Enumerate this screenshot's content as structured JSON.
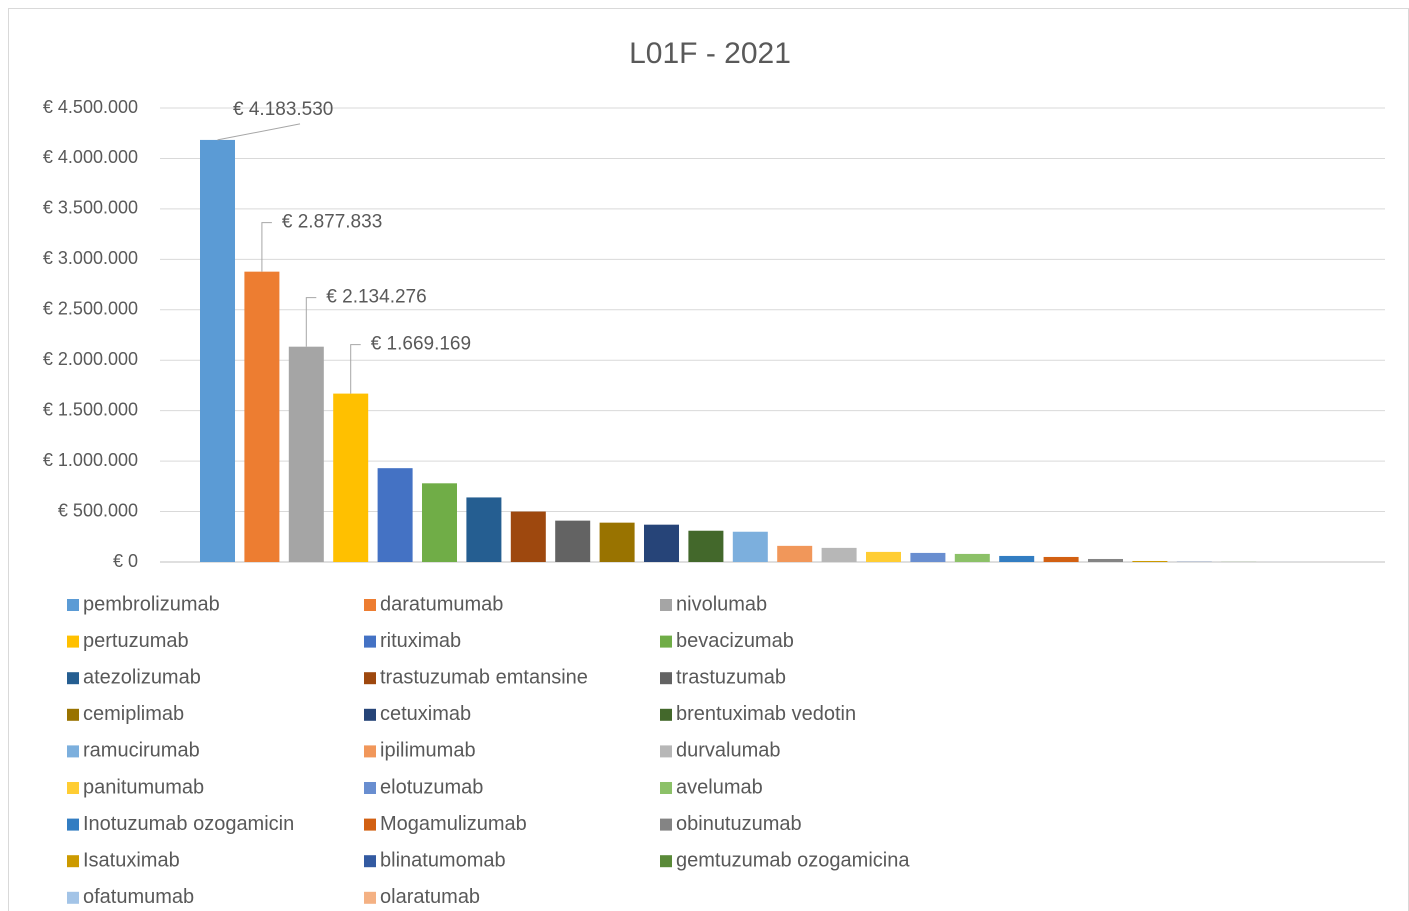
{
  "chart_data": {
    "type": "bar",
    "title": "L01F - 2021",
    "categories": [
      null
    ],
    "ylim": [
      0,
      4500000
    ],
    "yticks": [
      {
        "value": 0,
        "label": "€ 0"
      },
      {
        "value": 500000,
        "label": "€ 500.000"
      },
      {
        "value": 1000000,
        "label": "€ 1.000.000"
      },
      {
        "value": 1500000,
        "label": "€ 1.500.000"
      },
      {
        "value": 2000000,
        "label": "€ 2.000.000"
      },
      {
        "value": 2500000,
        "label": "€ 2.500.000"
      },
      {
        "value": 3000000,
        "label": "€ 3.000.000"
      },
      {
        "value": 3500000,
        "label": "€ 3.500.000"
      },
      {
        "value": 4000000,
        "label": "€ 4.000.000"
      },
      {
        "value": 4500000,
        "label": "€ 4.500.000"
      }
    ],
    "grid": true,
    "legend": "bottom",
    "series": [
      {
        "name": "pembrolizumab",
        "color": "#5B9BD5",
        "values": [
          4183530
        ],
        "value_labels": [
          "€ 4.183.530"
        ]
      },
      {
        "name": "daratumumab",
        "color": "#ED7D31",
        "values": [
          2877833
        ],
        "value_labels": [
          "€ 2.877.833"
        ]
      },
      {
        "name": "nivolumab",
        "color": "#A5A5A5",
        "values": [
          2134276
        ],
        "value_labels": [
          "€ 2.134.276"
        ]
      },
      {
        "name": "pertuzumab",
        "color": "#FFC000",
        "values": [
          1669169
        ],
        "value_labels": [
          "€ 1.669.169"
        ]
      },
      {
        "name": "rituximab",
        "color": "#4472C4",
        "values": [
          930000
        ]
      },
      {
        "name": "bevacizumab",
        "color": "#70AD47",
        "values": [
          780000
        ]
      },
      {
        "name": "atezolizumab",
        "color": "#255E91",
        "values": [
          640000
        ]
      },
      {
        "name": "trastuzumab emtansine",
        "color": "#9E480E",
        "values": [
          500000
        ]
      },
      {
        "name": "trastuzumab",
        "color": "#636363",
        "values": [
          410000
        ]
      },
      {
        "name": "cemiplimab",
        "color": "#997300",
        "values": [
          390000
        ]
      },
      {
        "name": "cetuximab",
        "color": "#264478",
        "values": [
          370000
        ]
      },
      {
        "name": "brentuximab vedotin",
        "color": "#43682B",
        "values": [
          310000
        ]
      },
      {
        "name": "ramucirumab",
        "color": "#7CAFDD",
        "values": [
          300000
        ]
      },
      {
        "name": "ipilimumab",
        "color": "#F1975A",
        "values": [
          160000
        ]
      },
      {
        "name": "durvalumab",
        "color": "#B7B7B7",
        "values": [
          140000
        ]
      },
      {
        "name": "panitumumab",
        "color": "#FFCD33",
        "values": [
          100000
        ]
      },
      {
        "name": "elotuzumab",
        "color": "#698ED0",
        "values": [
          90000
        ]
      },
      {
        "name": "avelumab",
        "color": "#8CC168",
        "values": [
          80000
        ]
      },
      {
        "name": "Inotuzumab ozogamicin",
        "color": "#327DC2",
        "values": [
          60000
        ]
      },
      {
        "name": "Mogamulizumab",
        "color": "#D26012",
        "values": [
          50000
        ]
      },
      {
        "name": "obinutuzumab",
        "color": "#848484",
        "values": [
          30000
        ]
      },
      {
        "name": "Isatuximab",
        "color": "#CC9A00",
        "values": [
          10000
        ]
      },
      {
        "name": "blinatumomab",
        "color": "#335AA1",
        "values": [
          2000
        ]
      },
      {
        "name": "gemtuzumab ozogamicina",
        "color": "#5A8A39",
        "values": [
          1000
        ]
      },
      {
        "name": "ofatumumab",
        "color": "#A3C4E7",
        "values": [
          500
        ]
      },
      {
        "name": "olaratumab",
        "color": "#F4B183",
        "values": [
          200
        ]
      }
    ]
  }
}
